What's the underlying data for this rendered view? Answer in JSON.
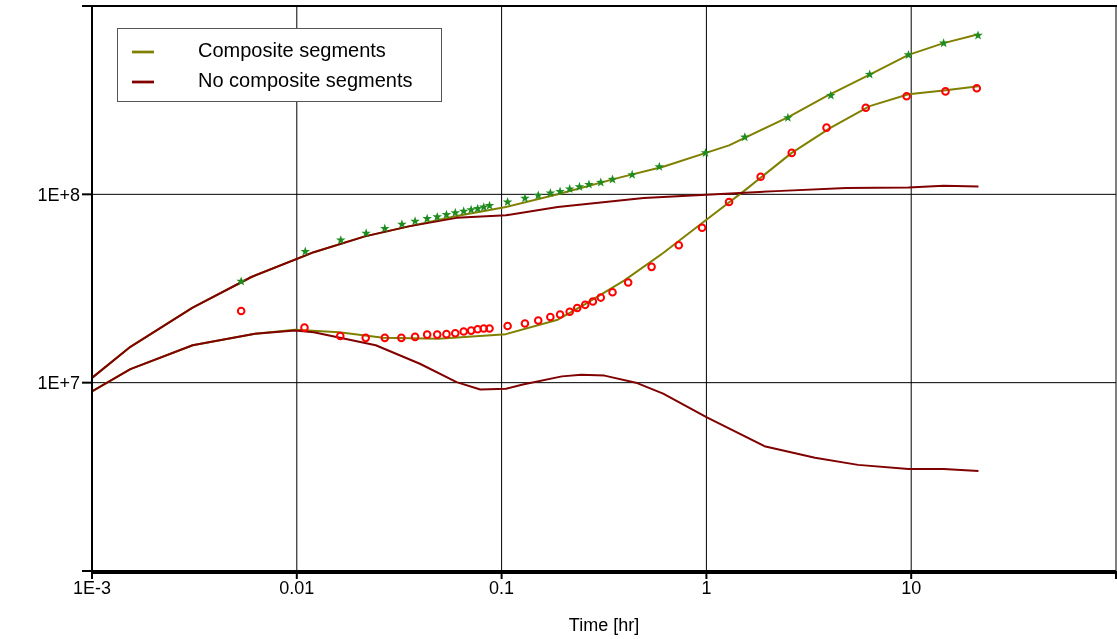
{
  "chart_data": {
    "type": "scatter",
    "xlabel": "Time [hr]",
    "log": "xy",
    "grid": true,
    "legend": "top left",
    "line_style": "solid",
    "xlim": [
      0.001,
      100
    ],
    "xticks": [
      {
        "value": 0.001,
        "label": "1E-3"
      },
      0.01,
      0.1,
      1,
      10,
      {
        "value": 100,
        "label": null
      }
    ],
    "ylim": [
      1000000,
      1000000000
    ],
    "yticks": [
      {
        "value": 1000000,
        "label": null
      },
      {
        "value": 10000000,
        "label": "1E+7"
      },
      {
        "value": 100000000,
        "label": "1E+8"
      },
      {
        "value": 1000000000,
        "label": null
      }
    ],
    "series": [
      {
        "marker": "star",
        "color": "#1e8c1e",
        "x": [
          0.00535,
          0.011,
          0.0164,
          0.0218,
          0.0269,
          0.0326,
          0.0378,
          0.0433,
          0.0485,
          0.0538,
          0.0594,
          0.0653,
          0.071,
          0.0764,
          0.0818,
          0.0873,
          0.107,
          0.13,
          0.151,
          0.173,
          0.193,
          0.215,
          0.24,
          0.267,
          0.305,
          0.348,
          0.434,
          0.589,
          0.99,
          1.54,
          2.5,
          4.05,
          6.27,
          9.7,
          14.4,
          21.2
        ],
        "values": [
          34500000.0,
          49700000.0,
          57100000.0,
          62100000.0,
          65800000.0,
          69300000.0,
          71900000.0,
          74300000.0,
          75900000.0,
          78000000.0,
          79800000.0,
          81300000.0,
          82800000.0,
          83900000.0,
          85500000.0,
          87100000.0,
          91000000.0,
          95300000.0,
          98600000.0,
          101600000.0,
          103500000.0,
          106700000.0,
          109600000.0,
          112700000.0,
          115600000.0,
          120000000.0,
          127000000.0,
          140000000.0,
          166000000.0,
          201000000.0,
          255000000.0,
          335000000.0,
          433000000.0,
          550000000.0,
          635000000.0,
          698000000.0
        ]
      },
      {
        "marker": "circle",
        "color": "#ff0000",
        "x": [
          0.00535,
          0.0109,
          0.0163,
          0.0217,
          0.0269,
          0.0324,
          0.0378,
          0.0433,
          0.0485,
          0.0538,
          0.0594,
          0.0653,
          0.071,
          0.0764,
          0.0818,
          0.0873,
          0.107,
          0.13,
          0.151,
          0.173,
          0.193,
          0.215,
          0.234,
          0.256,
          0.279,
          0.305,
          0.348,
          0.415,
          0.54,
          0.733,
          0.953,
          1.29,
          1.84,
          2.61,
          3.86,
          6.0,
          9.5,
          14.7,
          20.9
        ],
        "values": [
          24000000.0,
          19600000.0,
          17700000.0,
          17300000.0,
          17300000.0,
          17300000.0,
          17500000.0,
          18000000.0,
          18000000.0,
          18100000.0,
          18300000.0,
          18700000.0,
          18900000.0,
          19200000.0,
          19400000.0,
          19400000.0,
          20000000.0,
          20600000.0,
          21400000.0,
          22300000.0,
          23000000.0,
          23800000.0,
          24900000.0,
          25900000.0,
          27000000.0,
          28300000.0,
          30200000.0,
          34000000.0,
          41200000.0,
          53700000.0,
          66500000.0,
          91000000.0,
          124000000.0,
          166000000.0,
          226000000.0,
          288000000.0,
          332000000.0,
          352000000.0,
          366000000.0
        ]
      },
      {
        "type": "line",
        "marker": "none",
        "name": "Composite segments",
        "color": "#808000",
        "x": [
          0.001,
          0.00154,
          0.0031,
          0.006,
          0.0121,
          0.0215,
          0.0352,
          0.0603,
          0.105,
          0.188,
          0.38,
          0.615,
          1.29,
          2.51,
          3.86,
          6.31,
          9.7,
          14.4,
          21.3
        ],
        "values": [
          10600000.0,
          15500000.0,
          25000000.0,
          36400000.0,
          49300000.0,
          59800000.0,
          67600000.0,
          76700000.0,
          85700000.0,
          100000000.0,
          123000000.0,
          140000000.0,
          182000000.0,
          257000000.0,
          332000000.0,
          433000000.0,
          550000000.0,
          635000000.0,
          708000000.0
        ]
      },
      {
        "type": "line",
        "marker": "none",
        "color": "#808000",
        "x": [
          0.001,
          0.00154,
          0.0031,
          0.00625,
          0.0098,
          0.0161,
          0.0264,
          0.049,
          0.105,
          0.188,
          0.256,
          0.396,
          0.615,
          1,
          1.54,
          2.61,
          4.05,
          6.27,
          9.7,
          14.4,
          21.3
        ],
        "values": [
          9000000.0,
          11800000.0,
          15800000.0,
          18200000.0,
          19100000.0,
          18500000.0,
          17300000.0,
          17100000.0,
          18100000.0,
          21600000.0,
          26100000.0,
          34800000.0,
          48800000.0,
          73300000.0,
          105000000.0,
          166000000.0,
          226000000.0,
          294000000.0,
          340000000.0,
          356000000.0,
          375000000.0
        ]
      },
      {
        "type": "line",
        "marker": "none",
        "name": "No composite segments",
        "color": "#800000",
        "x": [
          0.001,
          0.00154,
          0.0031,
          0.006,
          0.0121,
          0.0215,
          0.0352,
          0.0603,
          0.105,
          0.188,
          0.494,
          1,
          2.19,
          4.82,
          9.7,
          14.4,
          21.3
        ],
        "values": [
          10600000.0,
          15500000.0,
          25000000.0,
          36400000.0,
          49300000.0,
          59800000.0,
          67600000.0,
          75000000.0,
          77400000.0,
          85700000.0,
          95500000.0,
          99500000.0,
          104000000.0,
          108000000.0,
          108600000.0,
          111000000.0,
          110000000.0
        ]
      },
      {
        "type": "line",
        "marker": "none",
        "color": "#800000",
        "x": [
          0.001,
          0.00154,
          0.0031,
          0.00625,
          0.0098,
          0.0121,
          0.0243,
          0.0399,
          0.0603,
          0.0787,
          0.105,
          0.127,
          0.197,
          0.245,
          0.318,
          0.453,
          0.615,
          1,
          1.92,
          3.39,
          5.5,
          9.7,
          14.4,
          21.3
        ],
        "values": [
          9000000.0,
          11800000.0,
          15800000.0,
          18200000.0,
          18900000.0,
          18500000.0,
          15800000.0,
          12600000.0,
          10070000.0,
          9200000.0,
          9290000.0,
          9770000.0,
          10800000.0,
          11000000.0,
          10900000.0,
          10000000.0,
          8750000.0,
          6560000.0,
          4600000.0,
          3990000.0,
          3660000.0,
          3480000.0,
          3480000.0,
          3400000.0
        ]
      }
    ]
  }
}
